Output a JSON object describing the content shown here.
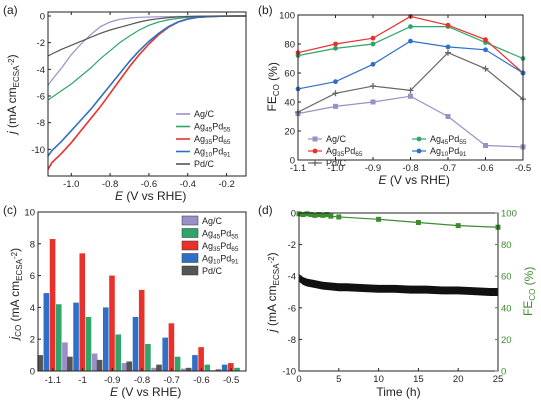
{
  "chart_data": [
    {
      "panel": "(a)",
      "type": "line",
      "xlabel_parts": [
        "E",
        " (V vs RHE)"
      ],
      "ylabel_parts": [
        "j",
        " (mA cm",
        "ECSA",
        "-2",
        ")"
      ],
      "xlim": [
        -1.12,
        -0.1
      ],
      "ylim": [
        -12,
        0.3
      ],
      "xticks": [
        -1.0,
        -0.8,
        -0.6,
        -0.4,
        -0.2
      ],
      "yticks": [
        0,
        -2,
        -4,
        -6,
        -8,
        -10
      ],
      "xtick_labels": [
        "-1.0",
        "-0.8",
        "-0.6",
        "-0.4",
        "-0.2"
      ],
      "ytick_labels": [
        "0",
        "-2",
        "-4",
        "-6",
        "-8",
        "-10"
      ],
      "legend_position": "bottom-right",
      "series": [
        {
          "name": [
            "Ag/C"
          ],
          "color": "#9b8fc6",
          "x": [
            -1.12,
            -1.1,
            -1.05,
            -1.0,
            -0.95,
            -0.9,
            -0.85,
            -0.8,
            -0.75,
            -0.7,
            -0.65,
            -0.6,
            -0.55,
            -0.5,
            -0.45,
            -0.4,
            -0.35,
            -0.3,
            -0.25,
            -0.2,
            -0.15,
            -0.1
          ],
          "y": [
            -5.2,
            -4.8,
            -3.9,
            -2.9,
            -2.1,
            -1.4,
            -0.8,
            -0.45,
            -0.25,
            -0.15,
            -0.1,
            -0.08,
            -0.06,
            -0.05,
            -0.04,
            -0.03,
            -0.02,
            -0.02,
            -0.01,
            -0.01,
            0,
            0
          ]
        },
        {
          "name": [
            "Ag",
            "45",
            "Pd",
            "55"
          ],
          "color": "#2fa56a",
          "x": [
            -1.12,
            -1.1,
            -1.05,
            -1.0,
            -0.95,
            -0.9,
            -0.85,
            -0.8,
            -0.75,
            -0.7,
            -0.65,
            -0.6,
            -0.55,
            -0.5,
            -0.45,
            -0.4,
            -0.35,
            -0.3,
            -0.25,
            -0.2,
            -0.15,
            -0.1
          ],
          "y": [
            -6.3,
            -6.1,
            -5.6,
            -5.1,
            -4.5,
            -3.9,
            -3.2,
            -2.6,
            -2.0,
            -1.5,
            -1.05,
            -0.7,
            -0.45,
            -0.28,
            -0.18,
            -0.1,
            -0.06,
            -0.04,
            -0.02,
            -0.01,
            0,
            0
          ]
        },
        {
          "name": [
            "Ag",
            "35",
            "Pd",
            "65"
          ],
          "color": "#e8312a",
          "x": [
            -1.12,
            -1.1,
            -1.05,
            -1.0,
            -0.95,
            -0.9,
            -0.85,
            -0.8,
            -0.75,
            -0.7,
            -0.65,
            -0.6,
            -0.55,
            -0.5,
            -0.45,
            -0.4,
            -0.35,
            -0.3,
            -0.25,
            -0.2,
            -0.15,
            -0.1
          ],
          "y": [
            -11.5,
            -11.0,
            -10.3,
            -9.5,
            -8.6,
            -7.7,
            -6.8,
            -5.8,
            -4.8,
            -3.8,
            -2.9,
            -2.1,
            -1.4,
            -0.85,
            -0.45,
            -0.22,
            -0.1,
            -0.05,
            -0.02,
            -0.01,
            0,
            0
          ]
        },
        {
          "name": [
            "Ag",
            "10",
            "Pd",
            "91"
          ],
          "color": "#2e6fc7",
          "x": [
            -1.12,
            -1.1,
            -1.05,
            -1.0,
            -0.95,
            -0.9,
            -0.85,
            -0.8,
            -0.75,
            -0.7,
            -0.65,
            -0.6,
            -0.55,
            -0.5,
            -0.45,
            -0.4,
            -0.35,
            -0.3,
            -0.25,
            -0.2,
            -0.15,
            -0.1
          ],
          "y": [
            -10.5,
            -10.1,
            -9.4,
            -8.6,
            -7.8,
            -7.0,
            -6.1,
            -5.2,
            -4.3,
            -3.4,
            -2.6,
            -1.9,
            -1.3,
            -0.8,
            -0.45,
            -0.22,
            -0.1,
            -0.05,
            -0.02,
            -0.01,
            0,
            0
          ]
        },
        {
          "name": [
            "Pd/C"
          ],
          "color": "#555555",
          "x": [
            -1.12,
            -1.1,
            -1.05,
            -1.0,
            -0.95,
            -0.9,
            -0.85,
            -0.8,
            -0.75,
            -0.7,
            -0.65,
            -0.6,
            -0.55,
            -0.5,
            -0.45,
            -0.4,
            -0.35,
            -0.3,
            -0.25,
            -0.2,
            -0.15,
            -0.1
          ],
          "y": [
            -3.0,
            -2.85,
            -2.5,
            -2.2,
            -1.9,
            -1.6,
            -1.3,
            -1.05,
            -0.85,
            -0.65,
            -0.45,
            -0.3,
            -0.2,
            -0.12,
            -0.07,
            -0.04,
            -0.02,
            -0.01,
            0,
            0,
            0,
            0
          ]
        }
      ]
    },
    {
      "panel": "(b)",
      "type": "line",
      "xlabel_parts": [
        "E",
        " (V vs RHE)"
      ],
      "ylabel_parts": [
        "FE",
        "CO",
        " (%)"
      ],
      "xlim": [
        -1.1,
        -0.5
      ],
      "ylim": [
        0,
        100
      ],
      "xticks": [
        -1.1,
        -1.0,
        -0.9,
        -0.8,
        -0.7,
        -0.6,
        -0.5
      ],
      "yticks": [
        0,
        20,
        40,
        60,
        80,
        100
      ],
      "xtick_labels": [
        "-1.1",
        "-1.0",
        "-0.9",
        "-0.8",
        "-0.7",
        "-0.6",
        "-0.5"
      ],
      "ytick_labels": [
        "0",
        "20",
        "40",
        "60",
        "80",
        "100"
      ],
      "legend_position": "bottom",
      "x": [
        -1.1,
        -1.0,
        -0.9,
        -0.8,
        -0.7,
        -0.6,
        -0.5
      ],
      "series": [
        {
          "name": [
            "Ag/C"
          ],
          "color": "#9b8fc6",
          "marker": "square",
          "values": [
            32,
            37,
            40,
            44,
            30,
            10,
            9
          ]
        },
        {
          "name": [
            "Ag",
            "45",
            "Pd",
            "55"
          ],
          "color": "#2fa56a",
          "marker": "circle",
          "values": [
            72,
            77,
            80,
            92,
            92,
            81,
            70
          ]
        },
        {
          "name": [
            "Ag",
            "35",
            "Pd",
            "65"
          ],
          "color": "#e8312a",
          "marker": "circle",
          "values": [
            74,
            80,
            84,
            99,
            93,
            83,
            60
          ]
        },
        {
          "name": [
            "Ag",
            "10",
            "Pd",
            "91"
          ],
          "color": "#2e6fc7",
          "marker": "circle",
          "values": [
            49,
            54,
            66,
            82,
            78,
            76,
            60
          ]
        },
        {
          "name": [
            "Pd/C"
          ],
          "color": "#666666",
          "marker": "plus",
          "values": [
            33,
            46,
            51,
            48,
            74,
            63,
            42
          ]
        }
      ]
    },
    {
      "panel": "(c)",
      "type": "bar",
      "xlabel_parts": [
        "E",
        " (V vs RHE)"
      ],
      "ylabel_parts": [
        "j",
        "CO",
        " (mA cm",
        "ECSA",
        "-2",
        ")"
      ],
      "categories": [
        "-1.1",
        "-1",
        "-0.9",
        "-0.8",
        "-0.7",
        "-0.6",
        "-0.5"
      ],
      "ylim": [
        0,
        10
      ],
      "yticks": [
        0,
        2,
        4,
        6,
        8,
        10
      ],
      "ytick_labels": [
        "0",
        "2",
        "4",
        "6",
        "8",
        "10"
      ],
      "legend_position": "top-right",
      "series": [
        {
          "name": [
            "Ag/C"
          ],
          "color": "#9b8fc6",
          "values": [
            1.8,
            1.1,
            0.5,
            0.2,
            0.15,
            0.05,
            0.03
          ]
        },
        {
          "name": [
            "Ag",
            "45",
            "Pd",
            "55"
          ],
          "color": "#2fa56a",
          "values": [
            4.2,
            3.4,
            2.3,
            1.7,
            0.9,
            0.4,
            0.2
          ]
        },
        {
          "name": [
            "Ag",
            "35",
            "Pd",
            "65"
          ],
          "color": "#e8312a",
          "values": [
            8.3,
            7.4,
            6.0,
            5.1,
            3.0,
            1.5,
            0.5
          ]
        },
        {
          "name": [
            "Ag",
            "10",
            "Pd",
            "91"
          ],
          "color": "#2e6fc7",
          "values": [
            4.9,
            4.3,
            4.0,
            3.4,
            2.1,
            1.0,
            0.4
          ]
        },
        {
          "name": [
            "Pd/C"
          ],
          "color": "#555555",
          "values": [
            1.0,
            0.9,
            0.7,
            0.6,
            0.4,
            0.2,
            0.1
          ]
        }
      ],
      "draw_order": [
        4,
        3,
        2,
        1,
        0
      ]
    },
    {
      "panel": "(d)",
      "type": "line",
      "xlabel_parts": [
        "Time (h)"
      ],
      "ylabel_parts": [
        "j",
        " (mA cm",
        "ECSA",
        "-2",
        ")"
      ],
      "y2label_parts": [
        "FE",
        "CO",
        " (%)"
      ],
      "xlim": [
        0,
        25
      ],
      "ylim": [
        -10,
        0
      ],
      "y2lim": [
        0,
        100
      ],
      "xticks": [
        0,
        5,
        10,
        15,
        20,
        25
      ],
      "yticks": [
        0,
        -2,
        -4,
        -6,
        -8,
        -10
      ],
      "y2ticks": [
        0,
        20,
        40,
        60,
        80,
        100
      ],
      "xtick_labels": [
        "0",
        "5",
        "10",
        "15",
        "20",
        "25"
      ],
      "ytick_labels": [
        "0",
        "-2",
        "-4",
        "-6",
        "-8",
        "-10"
      ],
      "y2tick_labels": [
        "0",
        "20",
        "40",
        "60",
        "80",
        "100"
      ],
      "y2_color": "#3c8c2e",
      "current_series": {
        "color": "#111111",
        "axis": "left",
        "x": [
          0,
          0.5,
          1,
          2,
          3,
          4,
          5,
          6,
          8,
          10,
          12,
          14,
          16,
          18,
          20,
          22,
          24,
          25
        ],
        "y": [
          -4.1,
          -4.3,
          -4.4,
          -4.5,
          -4.6,
          -4.65,
          -4.7,
          -4.7,
          -4.75,
          -4.8,
          -4.8,
          -4.85,
          -4.85,
          -4.9,
          -4.9,
          -4.95,
          -5.0,
          -5.0
        ],
        "band": 0.25
      },
      "fe_series": {
        "color": "#3c8c2e",
        "marker": "square",
        "axis": "right",
        "x": [
          0,
          0.5,
          1,
          1.5,
          2,
          2.5,
          3,
          3.5,
          4,
          5,
          10,
          15,
          20,
          25
        ],
        "values": [
          99.5,
          99,
          99.5,
          99,
          98.5,
          99,
          98.5,
          99,
          98,
          97.5,
          96,
          94,
          92,
          91
        ]
      }
    }
  ]
}
